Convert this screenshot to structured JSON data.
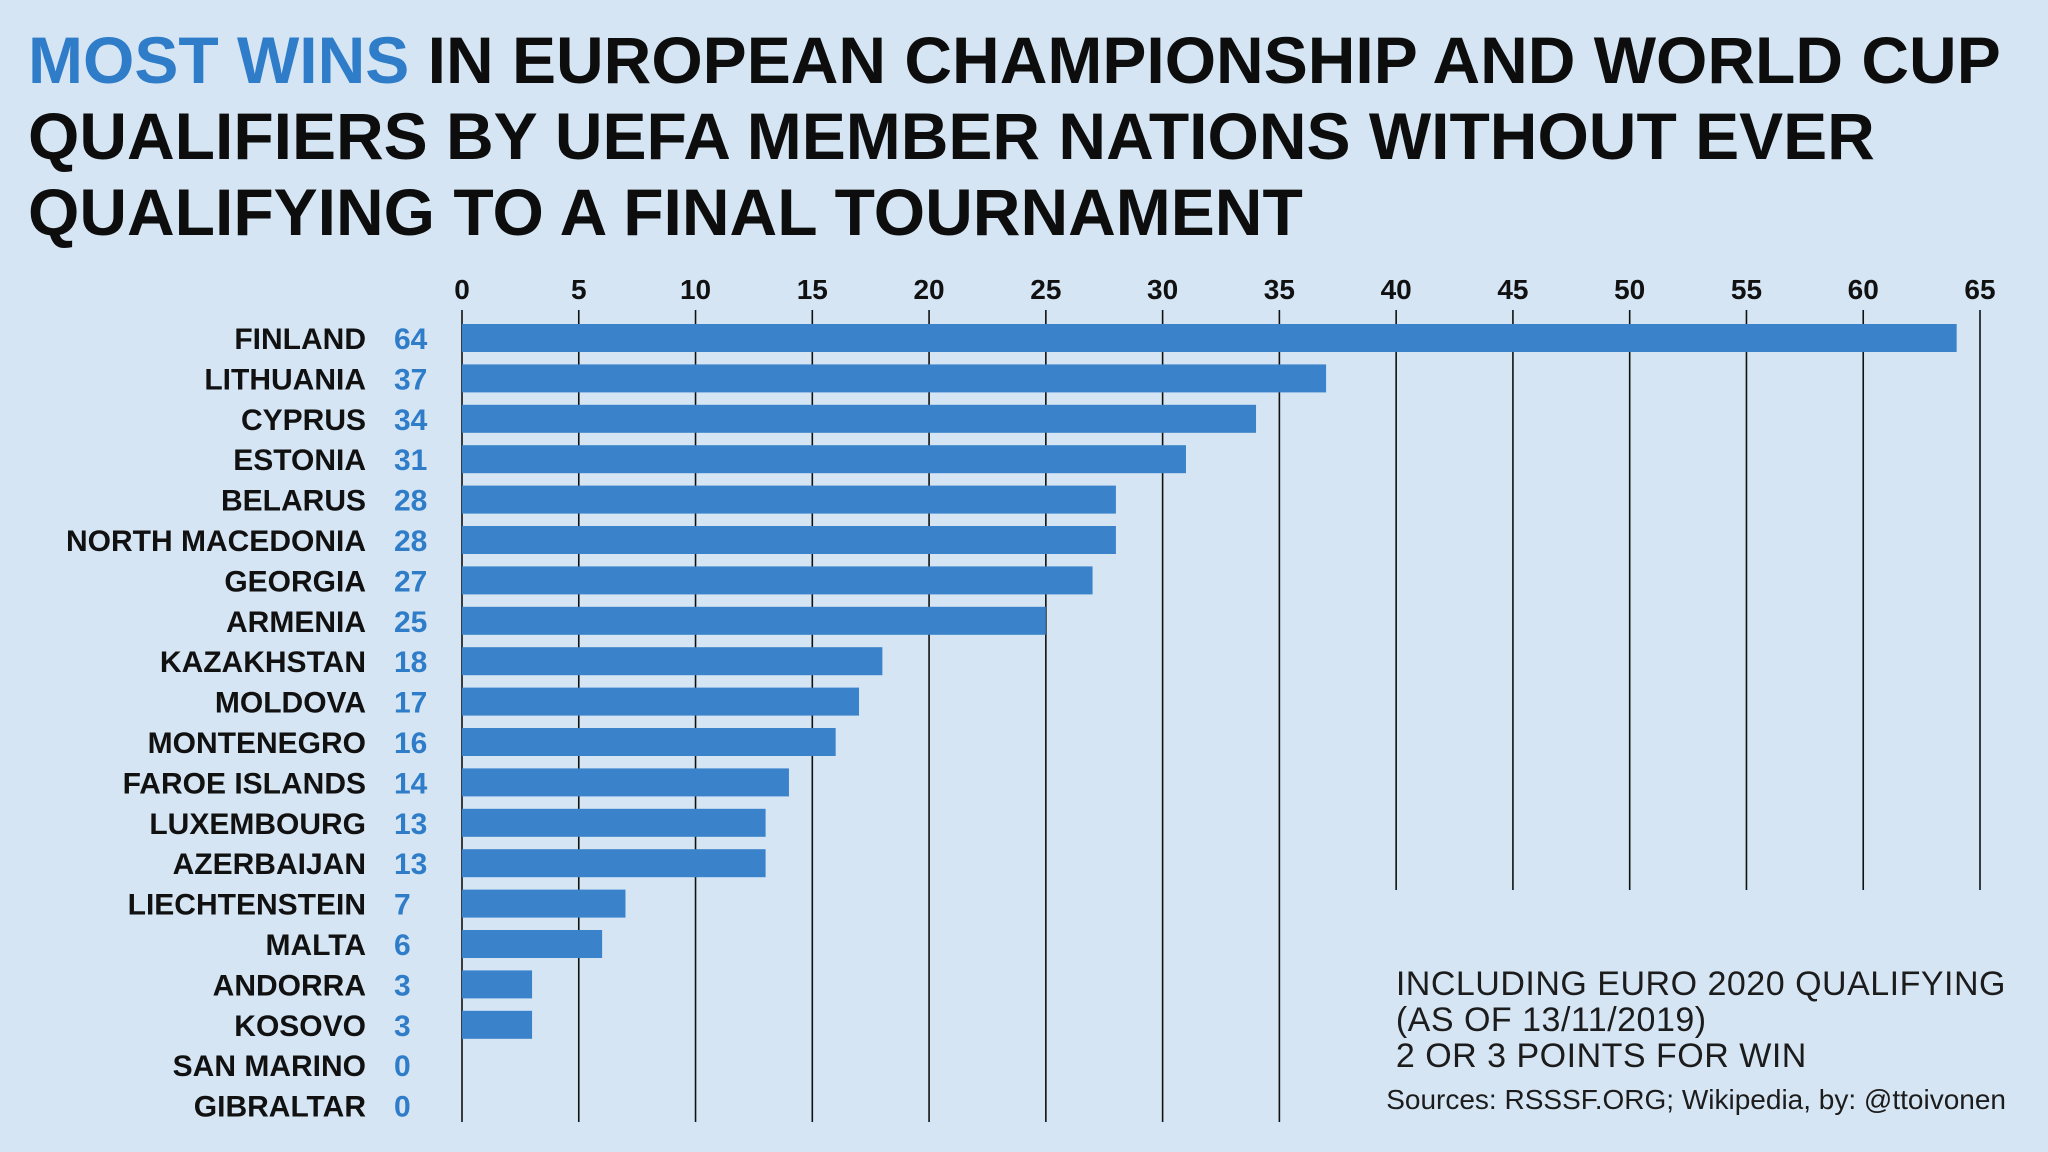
{
  "title": {
    "highlight": "MOST WINS",
    "rest": " IN EUROPEAN CHAMPIONSHIP AND WORLD CUP QUALIFIERS BY UEFA MEMBER NATIONS WITHOUT EVER QUALIFYING TO A FINAL TOURNAMENT"
  },
  "notes": {
    "line1": "INCLUDING EURO 2020 QUALIFYING",
    "line2": "(AS OF 13/11/2019)",
    "line3": "2 OR 3 POINTS FOR WIN",
    "source": "Sources: RSSSF.ORG; Wikipedia, by: @ttoivonen"
  },
  "colors": {
    "background": "#d5e5f4",
    "bar": "#3a82ca",
    "value_label": "#2f7cc8",
    "gridline": "#111111",
    "title_accent": "#2f7cc8"
  },
  "chart_data": {
    "type": "bar",
    "orientation": "horizontal",
    "title": "MOST WINS IN EUROPEAN CHAMPIONSHIP AND WORLD CUP QUALIFIERS BY UEFA MEMBER NATIONS WITHOUT EVER QUALIFYING TO A FINAL TOURNAMENT",
    "categories": [
      "FINLAND",
      "LITHUANIA",
      "CYPRUS",
      "ESTONIA",
      "BELARUS",
      "NORTH MACEDONIA",
      "GEORGIA",
      "ARMENIA",
      "KAZAKHSTAN",
      "MOLDOVA",
      "MONTENEGRO",
      "FAROE ISLANDS",
      "LUXEMBOURG",
      "AZERBAIJAN",
      "LIECHTENSTEIN",
      "MALTA",
      "ANDORRA",
      "KOSOVO",
      "SAN MARINO",
      "GIBRALTAR"
    ],
    "values": [
      64,
      37,
      34,
      31,
      28,
      28,
      27,
      25,
      18,
      17,
      16,
      14,
      13,
      13,
      7,
      6,
      3,
      3,
      0,
      0
    ],
    "xlim": [
      0,
      65
    ],
    "ticks": [
      0,
      5,
      10,
      15,
      20,
      25,
      30,
      35,
      40,
      45,
      50,
      55,
      60,
      65
    ],
    "tick_position": "top",
    "grid": true,
    "xlabel": "",
    "ylabel": ""
  }
}
